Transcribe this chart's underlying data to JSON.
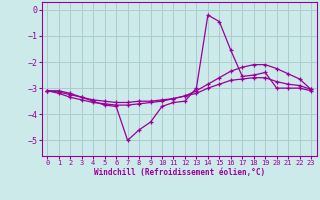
{
  "xlabel": "Windchill (Refroidissement éolien,°C)",
  "background_color": "#cceaea",
  "grid_color": "#aacccc",
  "line_color": "#990099",
  "xlim": [
    -0.5,
    23.5
  ],
  "ylim": [
    -5.6,
    0.3
  ],
  "yticks": [
    0,
    -1,
    -2,
    -3,
    -4,
    -5
  ],
  "xticks": [
    0,
    1,
    2,
    3,
    4,
    5,
    6,
    7,
    8,
    9,
    10,
    11,
    12,
    13,
    14,
    15,
    16,
    17,
    18,
    19,
    20,
    21,
    22,
    23
  ],
  "series": [
    {
      "x": [
        0,
        1,
        2,
        3,
        4,
        5,
        6,
        7,
        8,
        9,
        10,
        11,
        12,
        13,
        14,
        15,
        16,
        17,
        18,
        19,
        20,
        21,
        22,
        23
      ],
      "y": [
        -3.1,
        -3.1,
        -3.2,
        -3.35,
        -3.5,
        -3.65,
        -3.7,
        -5.0,
        -4.6,
        -4.3,
        -3.7,
        -3.55,
        -3.5,
        -3.0,
        -0.2,
        -0.45,
        -1.55,
        -2.55,
        -2.5,
        -2.4,
        -3.0,
        -3.0,
        -3.0,
        -3.1
      ]
    },
    {
      "x": [
        0,
        1,
        2,
        3,
        4,
        5,
        6,
        7,
        8,
        9,
        10,
        11,
        12,
        13,
        14,
        15,
        16,
        17,
        18,
        19,
        20,
        21,
        22,
        23
      ],
      "y": [
        -3.1,
        -3.15,
        -3.25,
        -3.35,
        -3.45,
        -3.5,
        -3.55,
        -3.55,
        -3.5,
        -3.5,
        -3.45,
        -3.4,
        -3.3,
        -3.2,
        -3.0,
        -2.85,
        -2.7,
        -2.65,
        -2.6,
        -2.6,
        -2.75,
        -2.85,
        -2.9,
        -3.05
      ]
    },
    {
      "x": [
        0,
        1,
        2,
        3,
        4,
        5,
        6,
        7,
        8,
        9,
        10,
        11,
        12,
        13,
        14,
        15,
        16,
        17,
        18,
        19,
        20,
        21,
        22,
        23
      ],
      "y": [
        -3.1,
        -3.2,
        -3.35,
        -3.45,
        -3.55,
        -3.6,
        -3.65,
        -3.65,
        -3.6,
        -3.55,
        -3.5,
        -3.4,
        -3.3,
        -3.1,
        -2.85,
        -2.6,
        -2.35,
        -2.2,
        -2.1,
        -2.1,
        -2.25,
        -2.45,
        -2.65,
        -3.05
      ]
    }
  ]
}
